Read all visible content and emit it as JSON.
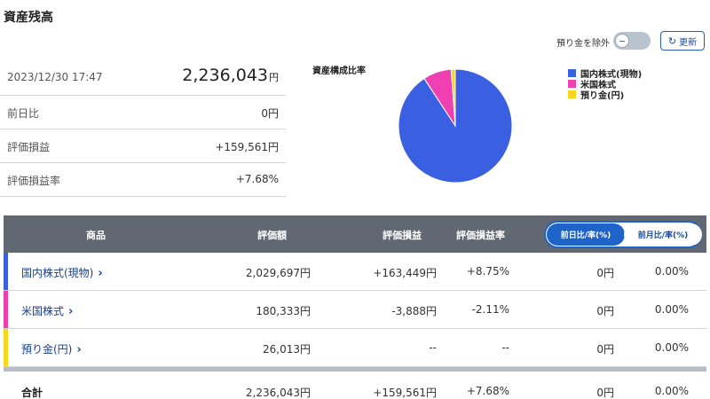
{
  "page_title": "資産残高",
  "summary": {
    "datetime": "2023/12/30 17:47",
    "total_value": "2,236,043",
    "total_unit": "円",
    "rows": [
      {
        "label": "前日比",
        "value": "0円",
        "tone": "normal"
      },
      {
        "label": "評価損益",
        "value": "+159,561円",
        "tone": "pos"
      },
      {
        "label": "評価損益率",
        "value": "+7.68%",
        "tone": "pos"
      }
    ]
  },
  "controls": {
    "exclude_deposit_label": "預り金を除外",
    "exclude_deposit_on": false,
    "refresh_label": "更新",
    "refresh_icon": "refresh-icon"
  },
  "chart_data": {
    "type": "pie",
    "title": "資産構成比率",
    "legend_position": "right",
    "slices": [
      {
        "label": "国内株式(現物)",
        "value": 2029697,
        "color": "#3a5fe0"
      },
      {
        "label": "米国株式",
        "value": 180333,
        "color": "#f03fb0"
      },
      {
        "label": "預り金(円)",
        "value": 26013,
        "color": "#f7d61c"
      }
    ]
  },
  "table": {
    "headers": {
      "product": "商品",
      "value": "評価額",
      "gain": "評価損益",
      "gain_rate": "評価損益率"
    },
    "toggle": {
      "day": "前日比/率(%)",
      "month": "前月比/率(%)",
      "selected": "day"
    },
    "rows": [
      {
        "name": "国内株式(現物)",
        "value": "2,029,697円",
        "gain": "+163,449円",
        "gain_tone": "pos",
        "rate": "+8.75%",
        "rate_tone": "pos",
        "diff": "0円",
        "diff_rate": "0.00%",
        "color": "#3a5fe0"
      },
      {
        "name": "米国株式",
        "value": "180,333円",
        "gain": "-3,888円",
        "gain_tone": "neg",
        "rate": "-2.11%",
        "rate_tone": "neg",
        "diff": "0円",
        "diff_rate": "0.00%",
        "color": "#f03fb0"
      },
      {
        "name": "預り金(円)",
        "value": "26,013円",
        "gain": "--",
        "gain_tone": "normal",
        "rate": "--",
        "rate_tone": "normal",
        "diff": "0円",
        "diff_rate": "0.00%",
        "color": "#f7d61c"
      }
    ],
    "total": {
      "label": "合計",
      "value": "2,236,043円",
      "gain": "+159,561円",
      "gain_tone": "pos",
      "rate": "+7.68%",
      "rate_tone": "pos",
      "diff": "0円",
      "diff_rate": "0.00%"
    }
  }
}
